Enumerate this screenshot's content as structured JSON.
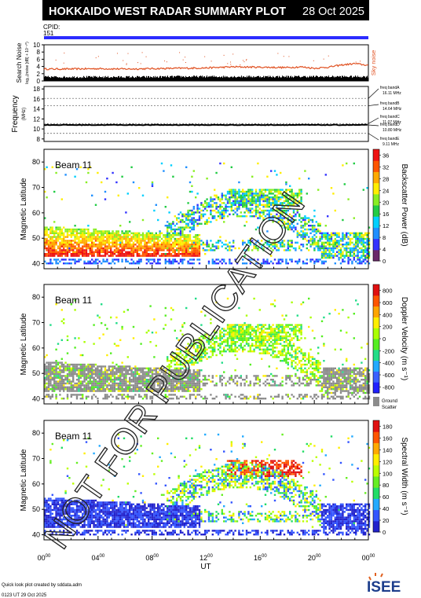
{
  "header": {
    "title": "HOKKAIDO WEST RADAR SUMMARY PLOT",
    "date": "28 Oct 2025",
    "cpid_label": "CPID:",
    "cpid_value": "151"
  },
  "colors": {
    "cpid_bar": "#2b2bff",
    "header_bg": "#000000",
    "sky_noise": "#e05020",
    "freq_line": "#000000"
  },
  "chart_data": [
    {
      "id": "search_noise",
      "type": "area",
      "ylabel": "Search Noise",
      "ylabel2": "log₁₀(noise [dB] + 10⁻¹⁰)",
      "ylim": [
        0,
        10
      ],
      "yticks": [
        0,
        2,
        4,
        6,
        8,
        10
      ],
      "legend": "Sky noise",
      "x": [
        0,
        2,
        4,
        6,
        8,
        10,
        12,
        14,
        16,
        18,
        19,
        20,
        21,
        22,
        23,
        24
      ],
      "sky_noise": [
        3.3,
        3.3,
        3.4,
        3.3,
        3.4,
        3.5,
        3.6,
        3.9,
        3.8,
        3.7,
        3.9,
        3.5,
        3.8,
        4.4,
        4.8,
        4.3
      ],
      "search_noise": [
        0.8,
        0.8,
        0.8,
        0.8,
        0.8,
        0.9,
        0.9,
        0.9,
        0.9,
        0.9,
        0.9,
        0.9,
        0.9,
        0.9,
        0.9,
        0.9
      ]
    },
    {
      "id": "frequency",
      "type": "line",
      "ylabel": "Frequency",
      "yunit": "(MHz)",
      "ylim": [
        7.5,
        18.5
      ],
      "yticks": [
        8,
        10,
        12,
        14,
        16,
        18
      ],
      "operating_frequency_mhz": 10.8,
      "bands": [
        {
          "label": "freq bandA",
          "value": "16.11 MHz",
          "mhz": 16.11
        },
        {
          "label": "freq bandB",
          "value": "14.64 MHz",
          "mhz": 14.64
        },
        {
          "label": "freq bandC",
          "value": "11.07 MHz",
          "mhz": 11.07
        },
        {
          "label": "freq bandD",
          "value": "10.80 MHz",
          "mhz": 10.8
        },
        {
          "label": "freq bandE",
          "value": "9.11 MHz",
          "mhz": 9.11
        }
      ]
    },
    {
      "id": "power",
      "type": "heatmap",
      "beam": "Beam 11",
      "ylabel": "Magnetic Latitude",
      "ylim": [
        38,
        85
      ],
      "yticks": [
        40,
        50,
        60,
        70,
        80
      ],
      "colorbar_label": "Backscatter Power (dB)",
      "colorbar_ticks": [
        "0",
        "4",
        "8",
        "12",
        "16",
        "20",
        "24",
        "28",
        "32",
        "36"
      ],
      "colorbar_range": [
        0,
        38
      ]
    },
    {
      "id": "velocity",
      "type": "heatmap",
      "beam": "Beam 11",
      "ylabel": "Magnetic Latitude",
      "ylim": [
        38,
        85
      ],
      "yticks": [
        40,
        50,
        60,
        70,
        80
      ],
      "colorbar_label": "Doppler Velocity (m s⁻¹)",
      "colorbar_ticks": [
        "800",
        "600",
        "400",
        "200",
        "0",
        "-200",
        "-400",
        "-600",
        "-800"
      ],
      "colorbar_range": [
        -900,
        900
      ],
      "ground_scatter_label": [
        "Ground",
        "Scatter"
      ]
    },
    {
      "id": "width",
      "type": "heatmap",
      "beam": "Beam 11",
      "ylabel": "Magnetic Latitude",
      "ylim": [
        38,
        85
      ],
      "yticks": [
        40,
        50,
        60,
        70,
        80
      ],
      "colorbar_label": "Spectral Width (m s⁻¹)",
      "colorbar_ticks": [
        "0",
        "20",
        "40",
        "60",
        "80",
        "100",
        "120",
        "140",
        "160",
        "180"
      ],
      "colorbar_range": [
        0,
        190
      ]
    }
  ],
  "xaxis": {
    "label": "UT",
    "range": [
      0,
      24
    ],
    "ticks": [
      {
        "h": 0,
        "main": "00",
        "sup": "00"
      },
      {
        "h": 4,
        "main": "04",
        "sup": "00"
      },
      {
        "h": 8,
        "main": "08",
        "sup": "00"
      },
      {
        "h": 12,
        "main": "12",
        "sup": "00"
      },
      {
        "h": 16,
        "main": "16",
        "sup": "00"
      },
      {
        "h": 20,
        "main": "20",
        "sup": "00"
      },
      {
        "h": 24,
        "main": "00",
        "sup": "00"
      }
    ]
  },
  "footer": {
    "line1": "Quick look plot created by sddata.adm",
    "line2": "0123 UT 29 Oct 2025",
    "logo": "ISEE"
  },
  "watermark": "NOT FOR PUBLICATION"
}
